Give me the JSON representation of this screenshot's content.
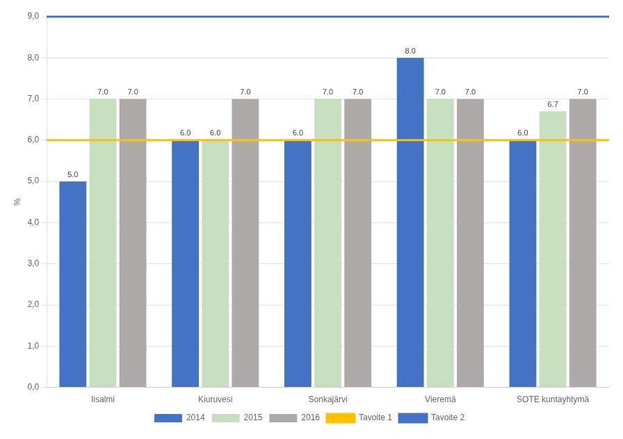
{
  "chart_data": {
    "type": "bar",
    "ylabel": "%",
    "categories": [
      "Iisalmi",
      "Kiuruvesi",
      "Sonkajärvi",
      "Vieremä",
      "SOTE kuntayhtymä"
    ],
    "series": [
      {
        "name": "2014",
        "color": "#4472C4",
        "values": [
          5.0,
          6.0,
          6.0,
          8.0,
          6.0
        ],
        "value_labels": [
          "5.0",
          "6.0",
          "6.0",
          "8.0",
          "6.0"
        ]
      },
      {
        "name": "2015",
        "color": "#C6DFBF",
        "values": [
          7.0,
          6.0,
          7.0,
          7.0,
          6.7
        ],
        "value_labels": [
          "7.0",
          "6.0",
          "7.0",
          "7.0",
          "6.7"
        ]
      },
      {
        "name": "2016",
        "color": "#AEAAAA",
        "values": [
          7.0,
          7.0,
          7.0,
          7.0,
          7.0
        ],
        "value_labels": [
          "7.0",
          "7.0",
          "7.0",
          "7.0",
          "7.0"
        ]
      }
    ],
    "hlines": [
      {
        "name": "Tavoite 1",
        "color": "#FFC000",
        "y": 6.0
      },
      {
        "name": "Tavoite 2",
        "color": "#4472C4",
        "y": 9.0
      }
    ],
    "ylim": [
      0.0,
      9.0
    ],
    "yticks": [
      {
        "value": 0,
        "label": "0,0"
      },
      {
        "value": 1,
        "label": "1,0"
      },
      {
        "value": 2,
        "label": "2,0"
      },
      {
        "value": 3,
        "label": "3,0"
      },
      {
        "value": 4,
        "label": "4,0"
      },
      {
        "value": 5,
        "label": "5,0"
      },
      {
        "value": 6,
        "label": "6,0"
      },
      {
        "value": 7,
        "label": "7,0"
      },
      {
        "value": 8,
        "label": "8,0"
      },
      {
        "value": 9,
        "label": "9,0"
      }
    ],
    "grid": "y",
    "legend": "bottom",
    "data_labels": true
  }
}
